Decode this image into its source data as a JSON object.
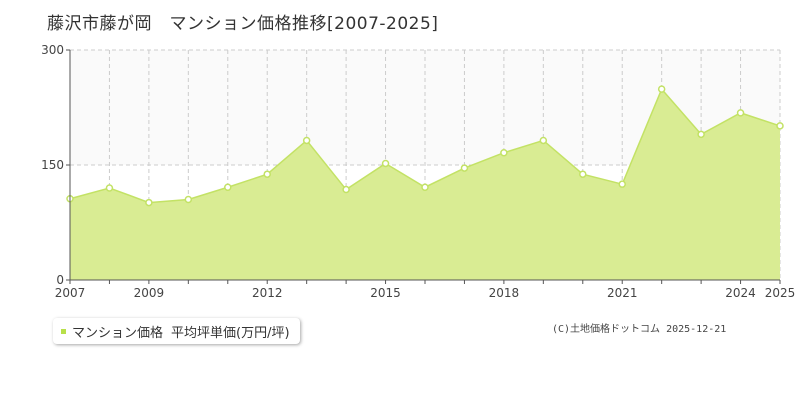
{
  "title": "藤沢市藤が岡　マンション価格推移[2007-2025]",
  "legend": {
    "series": "マンション価格",
    "metric": "平均坪単価(万円/坪)"
  },
  "credit": "(C)土地価格ドットコム 2025-12-21",
  "colors": {
    "fill": "#d9ec93",
    "line": "#c3e265",
    "marker_fill": "#ffffff",
    "grid": "#cccccc",
    "axis": "#555555"
  },
  "chart_data": {
    "type": "area",
    "title": "藤沢市藤が岡　マンション価格推移[2007-2025]",
    "xlabel": "",
    "ylabel": "",
    "x": [
      2007,
      2008,
      2009,
      2010,
      2011,
      2012,
      2013,
      2014,
      2015,
      2016,
      2017,
      2018,
      2019,
      2020,
      2021,
      2022,
      2023,
      2024,
      2025
    ],
    "x_tick_labels": [
      "2007",
      "2009",
      "2012",
      "2015",
      "2018",
      "2021",
      "2024",
      "2025"
    ],
    "y_ticks": [
      0,
      150,
      300
    ],
    "ylim": [
      0,
      300
    ],
    "grid": true,
    "series": [
      {
        "name": "マンション価格",
        "values": [
          106,
          120,
          101,
          105,
          121,
          138,
          182,
          118,
          152,
          121,
          146,
          166,
          182,
          138,
          125,
          249,
          190,
          218,
          201
        ]
      }
    ]
  }
}
